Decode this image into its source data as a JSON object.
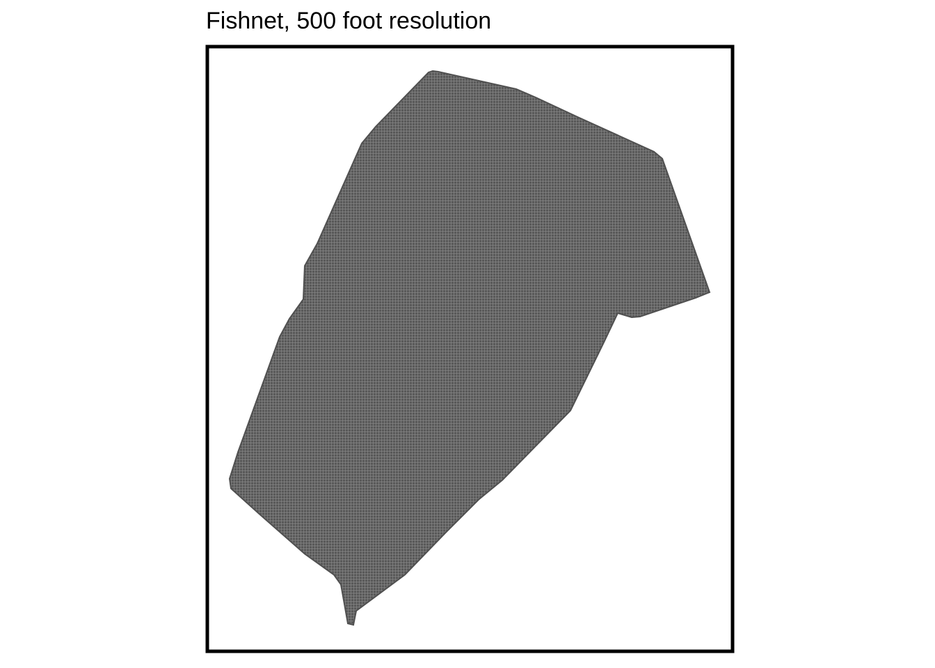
{
  "title": "Fishnet, 500 foot resolution",
  "map": {
    "layer": "fishnet-grid",
    "cell_size": "500 foot",
    "fill_color": "#595959",
    "grid_line_color": "#8c8c8c",
    "frame_color": "#000000",
    "background_color": "#ffffff"
  }
}
